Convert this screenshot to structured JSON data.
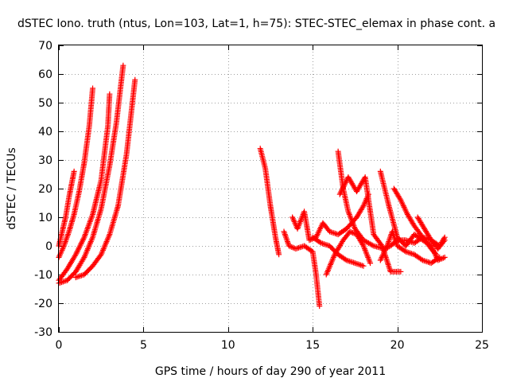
{
  "chart_data": {
    "type": "scatter",
    "title": "dSTEC Iono. truth (ntus, Lon=103, Lat=1, h=75): STEC-STEC_elemax in phase cont. a",
    "xlabel": "GPS time / hours of day 290 of year 2011",
    "ylabel": "dSTEC  / TECUs",
    "xlim": [
      0,
      25
    ],
    "ylim": [
      -30,
      70
    ],
    "xticks": [
      0,
      5,
      10,
      15,
      20,
      25
    ],
    "yticks": [
      -30,
      -20,
      -10,
      0,
      10,
      20,
      30,
      40,
      50,
      60,
      70
    ],
    "grid": true,
    "marker": "plus",
    "color": "#ff0000",
    "series": [
      {
        "x": [
          0.0,
          0.2,
          0.4,
          0.6,
          0.8,
          0.9
        ],
        "y": [
          0,
          5,
          10,
          17,
          23,
          26
        ]
      },
      {
        "x": [
          0.0,
          0.3,
          0.6,
          0.9,
          1.2,
          1.5,
          1.8,
          2.0
        ],
        "y": [
          -4,
          0,
          5,
          11,
          19,
          29,
          42,
          55
        ]
      },
      {
        "x": [
          0.0,
          0.5,
          1.0,
          1.5,
          2.0,
          2.5,
          2.9,
          3.0
        ],
        "y": [
          -12,
          -8,
          -3,
          3,
          11,
          23,
          42,
          53
        ]
      },
      {
        "x": [
          0.0,
          0.5,
          1.0,
          1.5,
          2.0,
          2.5,
          3.0,
          3.4,
          3.8
        ],
        "y": [
          -13,
          -12,
          -9,
          -4,
          3,
          13,
          28,
          43,
          63
        ]
      },
      {
        "x": [
          1.0,
          1.5,
          2.0,
          2.5,
          3.0,
          3.5,
          4.0,
          4.5
        ],
        "y": [
          -11,
          -10,
          -7,
          -3,
          4,
          14,
          32,
          58
        ]
      },
      {
        "x": [
          11.9,
          12.2,
          12.5,
          12.8,
          13.0
        ],
        "y": [
          34,
          27,
          14,
          3,
          -3
        ]
      },
      {
        "x": [
          13.3,
          13.6,
          14.0,
          14.5,
          15.0,
          15.2,
          15.4
        ],
        "y": [
          5,
          0,
          -1,
          0,
          -2,
          -10,
          -21
        ]
      },
      {
        "x": [
          13.8,
          14.1,
          14.5,
          14.8,
          15.2,
          15.6,
          16.0,
          16.5,
          17.0,
          17.6,
          18.0,
          18.3
        ],
        "y": [
          10,
          6,
          12,
          2,
          3,
          8,
          5,
          4,
          6,
          10,
          14,
          18
        ]
      },
      {
        "x": [
          16.5,
          16.8,
          17.1,
          17.5,
          18.0,
          18.6,
          19.2,
          19.6,
          20.0,
          20.5,
          21.0,
          21.5,
          22.0,
          22.5,
          22.8
        ],
        "y": [
          33,
          20,
          12,
          6,
          2,
          0,
          -1,
          0,
          2,
          2,
          1,
          3,
          2,
          0,
          3
        ]
      },
      {
        "x": [
          16.6,
          17.1,
          17.6,
          18.1,
          18.6,
          19.1,
          19.6,
          20.2
        ],
        "y": [
          18,
          24,
          19,
          24,
          4,
          0,
          -9,
          -9
        ]
      },
      {
        "x": [
          19.0,
          19.5,
          20.0,
          20.5,
          21.0,
          21.5,
          22.0,
          22.4,
          22.8
        ],
        "y": [
          26,
          14,
          3,
          0,
          4,
          2,
          0,
          -5,
          -4
        ]
      },
      {
        "x": [
          19.0,
          19.4,
          19.7,
          20.0,
          20.5,
          21.0,
          21.5,
          22.0,
          22.5
        ],
        "y": [
          -5,
          0,
          5,
          0,
          -2,
          -3,
          -5,
          -6,
          -4
        ]
      },
      {
        "x": [
          19.8,
          20.2,
          20.6,
          21.0,
          21.5,
          22.0,
          22.3
        ],
        "y": [
          20,
          16,
          11,
          7,
          3,
          -1,
          -3
        ]
      },
      {
        "x": [
          21.2,
          21.6,
          22.0,
          22.4,
          22.8
        ],
        "y": [
          10,
          6,
          2,
          -1,
          2
        ]
      },
      {
        "x": [
          15.8,
          16.3,
          16.8,
          17.2,
          17.6,
          18.0,
          18.4
        ],
        "y": [
          -10,
          -3,
          2,
          5,
          4,
          0,
          -6
        ]
      },
      {
        "x": [
          15.0,
          15.5,
          16.0,
          16.5,
          17.0,
          17.5,
          18.0
        ],
        "y": [
          3,
          1,
          0,
          -3,
          -5,
          -6,
          -7
        ]
      }
    ]
  }
}
